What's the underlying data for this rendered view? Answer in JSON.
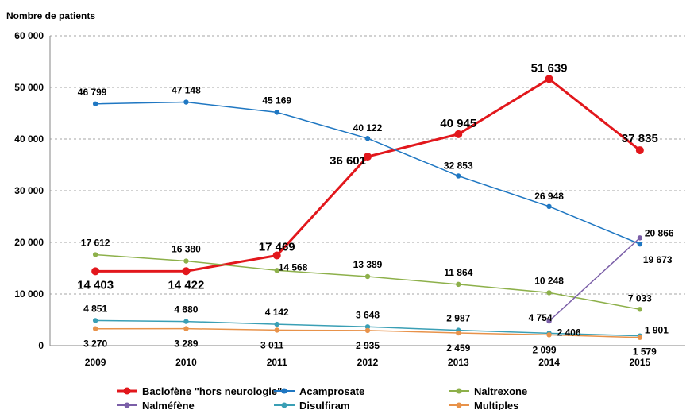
{
  "chart_data": {
    "type": "line",
    "ylabel": "Nombre de patients",
    "xlabel": "",
    "categories": [
      "2009",
      "2010",
      "2011",
      "2012",
      "2013",
      "2014",
      "2015"
    ],
    "ylim": [
      0,
      60000
    ],
    "yticks": [
      0,
      10000,
      20000,
      30000,
      40000,
      50000,
      60000
    ],
    "ytick_labels": [
      "0",
      "10 000",
      "20 000",
      "30 000",
      "40 000",
      "50 000",
      "60 000"
    ],
    "grid": true,
    "legend_position": "bottom",
    "series": [
      {
        "name": "Baclofène \"hors neurologie\"",
        "color": "#e2171c",
        "values": [
          14403,
          14422,
          17469,
          36601,
          40945,
          51639,
          37835
        ],
        "labels": [
          "14 403",
          "14 422",
          "17 469",
          "36 601",
          "40 945",
          "51 639",
          "37 835"
        ]
      },
      {
        "name": "Acamprosate",
        "color": "#1f77c2",
        "values": [
          46799,
          47148,
          45169,
          40122,
          32853,
          26948,
          19673
        ],
        "labels": [
          "46 799",
          "47 148",
          "45 169",
          "40 122",
          "32 853",
          "26 948",
          "19 673"
        ]
      },
      {
        "name": "Naltrexone",
        "color": "#8db04a",
        "values": [
          17612,
          16380,
          14568,
          13389,
          11864,
          10248,
          7033
        ],
        "labels": [
          "17 612",
          "16 380",
          "14 568",
          "13 389",
          "11 864",
          "10 248",
          "7 033"
        ]
      },
      {
        "name": "Nalméfène",
        "color": "#7b5fa8",
        "values": [
          null,
          null,
          null,
          null,
          null,
          4754,
          20866
        ],
        "labels": [
          null,
          null,
          null,
          null,
          null,
          "4 754",
          "20 866"
        ]
      },
      {
        "name": "Disulfiram",
        "color": "#3a9fb5",
        "values": [
          4851,
          4680,
          4142,
          3648,
          2987,
          2406,
          1901
        ],
        "labels": [
          "4 851",
          "4 680",
          "4 142",
          "3 648",
          "2 987",
          "2 406",
          "1 901"
        ]
      },
      {
        "name": "Multiples",
        "color": "#e8924a",
        "values": [
          3270,
          3289,
          3011,
          2935,
          2459,
          2099,
          1579
        ],
        "labels": [
          "3 270",
          "3 289",
          "3 011",
          "2 935",
          "2 459",
          "2 099",
          "1 579"
        ]
      }
    ]
  }
}
